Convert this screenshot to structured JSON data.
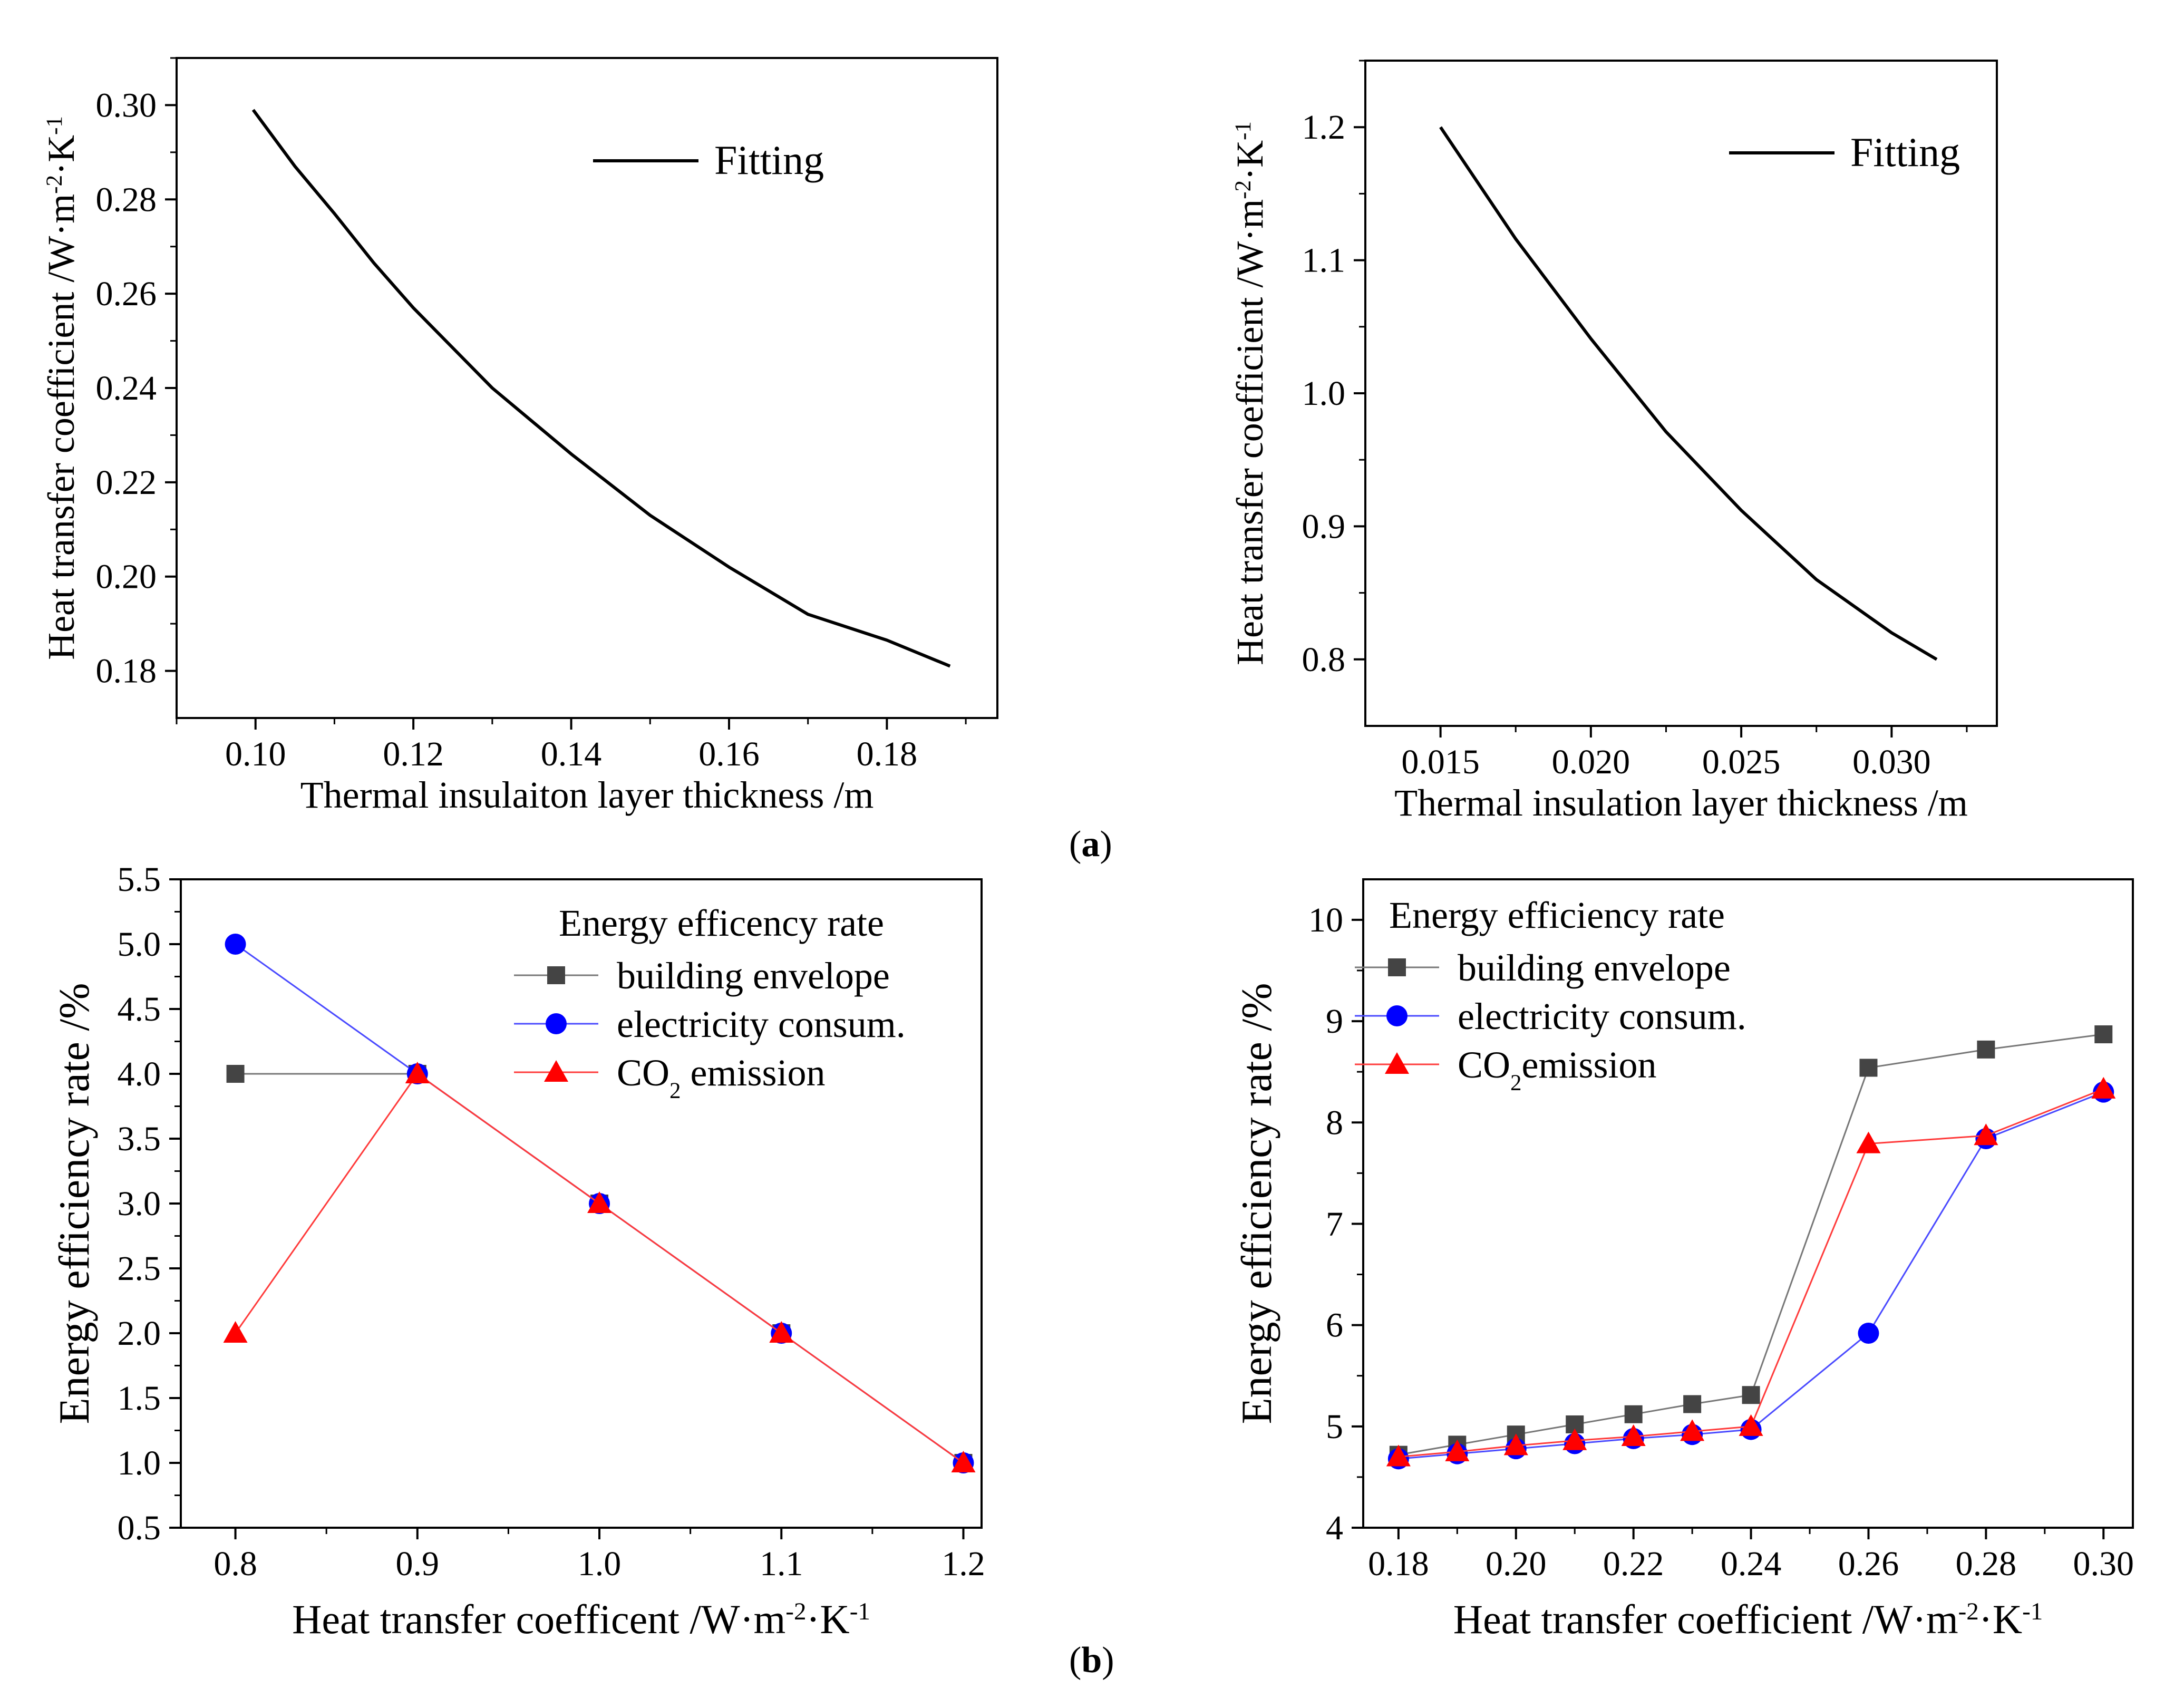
{
  "panel_labels": {
    "a": "a",
    "b": "b"
  },
  "colors": {
    "axis": "#000000",
    "fit": "#000000",
    "grey": "#444444",
    "blue": "#0000ff",
    "red": "#ff0000",
    "blue_line": "#4a4aff",
    "red_line": "#ff3b3b",
    "grey_line": "#777777"
  },
  "chart_data": [
    {
      "id": "a1",
      "type": "line",
      "xlabel": "Thermal insulaiton layer thickness /m",
      "ylabel": "Heat transfer coefficient /W·m⁻²·K⁻¹",
      "ylabel_base": "Heat transfer coefficient /W·m",
      "ylabel_sup1": "-2",
      "ylabel_mid": "·K",
      "ylabel_sup2": "-1",
      "xlim": [
        0.09,
        0.194
      ],
      "ylim": [
        0.17,
        0.31
      ],
      "xticks": [
        0.1,
        0.12,
        0.14,
        0.16,
        0.18
      ],
      "xtick_labels": [
        "0.10",
        "0.12",
        "0.14",
        "0.16",
        "0.18"
      ],
      "yticks": [
        0.18,
        0.2,
        0.22,
        0.24,
        0.26,
        0.28,
        0.3
      ],
      "ytick_labels": [
        "0.18",
        "0.20",
        "0.22",
        "0.24",
        "0.26",
        "0.28",
        "0.30"
      ],
      "legend": [
        "Fitting"
      ],
      "series": [
        {
          "name": "Fitting",
          "x": [
            0.0997,
            0.105,
            0.11,
            0.115,
            0.12,
            0.13,
            0.14,
            0.15,
            0.16,
            0.17,
            0.18,
            0.188
          ],
          "values": [
            0.299,
            0.287,
            0.277,
            0.2665,
            0.257,
            0.24,
            0.226,
            0.213,
            0.202,
            0.192,
            0.1865,
            0.181
          ]
        }
      ]
    },
    {
      "id": "a2",
      "type": "line",
      "xlabel": "Thermal insulation layer thickness /m",
      "ylabel": "Heat transfer coefficient /W·m⁻²·K⁻¹",
      "ylabel_base": "Heat transfer coefficient /W·m",
      "ylabel_sup1": "-2",
      "ylabel_mid": "·K",
      "ylabel_sup2": "-1",
      "xlim": [
        0.0125,
        0.0335
      ],
      "ylim": [
        0.75,
        1.25
      ],
      "xticks": [
        0.015,
        0.02,
        0.025,
        0.03
      ],
      "xtick_labels": [
        "0.015",
        "0.020",
        "0.025",
        "0.030"
      ],
      "yticks": [
        0.8,
        0.9,
        1.0,
        1.1,
        1.2
      ],
      "ytick_labels": [
        "0.8",
        "0.9",
        "1.0",
        "1.1",
        "1.2"
      ],
      "legend": [
        "Fitting"
      ],
      "series": [
        {
          "name": "Fitting",
          "x": [
            0.015,
            0.0175,
            0.02,
            0.0225,
            0.025,
            0.0275,
            0.03,
            0.0315
          ],
          "values": [
            1.2,
            1.116,
            1.041,
            0.971,
            0.912,
            0.86,
            0.82,
            0.8
          ]
        }
      ]
    },
    {
      "id": "b1",
      "type": "line",
      "xlabel": "Heat transfer coefficent /W·m⁻²·K⁻¹",
      "xlabel_base": "Heat transfer coefficent /W·m",
      "xlabel_sup1": "-2",
      "xlabel_mid": "·K",
      "xlabel_sup2": "-1",
      "ylabel": "Energy efficiency rate /%",
      "xlim": [
        0.77,
        1.21
      ],
      "ylim": [
        0.5,
        5.5
      ],
      "categories": [
        0.8,
        0.9,
        1.0,
        1.1,
        1.2
      ],
      "xtick_labels": [
        "0.8",
        "0.9",
        "1.0",
        "1.1",
        "1.2"
      ],
      "yticks": [
        0.5,
        1.0,
        1.5,
        2.0,
        2.5,
        3.0,
        3.5,
        4.0,
        4.5,
        5.0,
        5.5
      ],
      "ytick_labels": [
        "0.5",
        "1.0",
        "1.5",
        "2.0",
        "2.5",
        "3.0",
        "3.5",
        "4.0",
        "4.5",
        "5.0",
        "5.5"
      ],
      "legend_title": "Energy efficency rate",
      "series": [
        {
          "name": "building envelope",
          "marker": "square",
          "values": [
            4.0,
            4.0,
            3.0,
            2.0,
            1.0
          ]
        },
        {
          "name": "electricity consum.",
          "marker": "circle",
          "values": [
            5.0,
            4.0,
            3.0,
            2.0,
            1.0
          ]
        },
        {
          "name": "CO2 emission",
          "name_base": "CO",
          "name_sub": "2",
          "name_rest": " emission",
          "marker": "triangle",
          "values": [
            2.0,
            4.0,
            3.0,
            2.0,
            1.0
          ]
        }
      ]
    },
    {
      "id": "b2",
      "type": "line",
      "xlabel": "Heat transfer coefficient /W·m⁻²·K⁻¹",
      "xlabel_base": "Heat transfer coefficient /W·m",
      "xlabel_sup1": "-2",
      "xlabel_mid": "·K",
      "xlabel_sup2": "-1",
      "ylabel": "Energy efficiency rate /%",
      "xlim": [
        0.174,
        0.305
      ],
      "ylim": [
        4,
        10.4
      ],
      "categories": [
        0.18,
        0.19,
        0.2,
        0.21,
        0.22,
        0.23,
        0.24,
        0.26,
        0.28,
        0.3
      ],
      "xticks": [
        0.18,
        0.2,
        0.22,
        0.24,
        0.26,
        0.28,
        0.3
      ],
      "xtick_labels": [
        "0.18",
        "0.20",
        "0.22",
        "0.24",
        "0.26",
        "0.28",
        "0.30"
      ],
      "yticks": [
        4,
        5,
        6,
        7,
        8,
        9,
        10
      ],
      "ytick_labels": [
        "4",
        "5",
        "6",
        "7",
        "8",
        "9",
        "10"
      ],
      "legend_title": "Energy efficiency rate",
      "series": [
        {
          "name": "building envelope",
          "marker": "square",
          "values": [
            4.72,
            4.82,
            4.92,
            5.02,
            5.12,
            5.22,
            5.31,
            8.54,
            8.72,
            8.87
          ]
        },
        {
          "name": "electricity consum.",
          "marker": "circle",
          "values": [
            4.68,
            4.73,
            4.78,
            4.83,
            4.88,
            4.92,
            4.97,
            5.92,
            7.84,
            8.3
          ]
        },
        {
          "name": "CO2emission",
          "name_base": "CO",
          "name_sub": "2",
          "name_rest": "emission",
          "marker": "triangle",
          "values": [
            4.7,
            4.75,
            4.81,
            4.86,
            4.9,
            4.95,
            5.0,
            7.79,
            7.87,
            8.33
          ]
        }
      ]
    }
  ]
}
